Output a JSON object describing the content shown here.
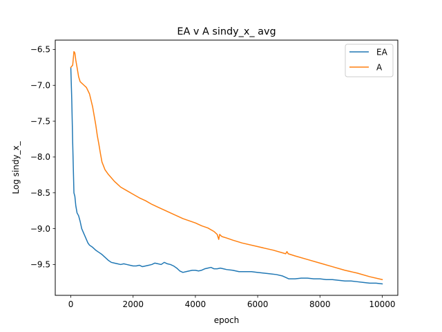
{
  "chart_data": {
    "type": "line",
    "title": "EA v A sindy_x_ avg",
    "xlabel": "epoch",
    "ylabel": "Log sindy_x_",
    "xlim": [
      -500,
      10500
    ],
    "ylim": [
      -9.93,
      -6.37
    ],
    "xticks": [
      0,
      2000,
      4000,
      6000,
      8000,
      10000
    ],
    "xtick_labels": [
      "0",
      "2000",
      "4000",
      "6000",
      "8000",
      "10000"
    ],
    "yticks": [
      -9.5,
      -9.0,
      -8.5,
      -8.0,
      -7.5,
      -7.0,
      -6.5
    ],
    "ytick_labels": [
      "−9.5",
      "−9.0",
      "−8.5",
      "−8.0",
      "−7.5",
      "−7.0",
      "−6.5"
    ],
    "grid": false,
    "legend_position": "upper right",
    "series": [
      {
        "name": "EA",
        "color": "#1f77b4",
        "x": [
          0,
          30,
          60,
          100,
          130,
          160,
          200,
          250,
          300,
          350,
          400,
          450,
          500,
          550,
          600,
          700,
          800,
          900,
          1000,
          1100,
          1200,
          1300,
          1400,
          1500,
          1600,
          1700,
          1800,
          1900,
          2000,
          2100,
          2200,
          2300,
          2400,
          2500,
          2600,
          2700,
          2800,
          2900,
          3000,
          3100,
          3200,
          3300,
          3400,
          3500,
          3600,
          3700,
          3800,
          3900,
          4000,
          4100,
          4200,
          4300,
          4400,
          4500,
          4600,
          4700,
          4800,
          4900,
          5000,
          5200,
          5400,
          5600,
          5800,
          6000,
          6200,
          6400,
          6600,
          6800,
          6900,
          7000,
          7200,
          7400,
          7600,
          7800,
          8000,
          8200,
          8400,
          8600,
          8800,
          9000,
          9200,
          9400,
          9600,
          9800,
          10000
        ],
        "y": [
          -6.76,
          -7.2,
          -7.8,
          -8.5,
          -8.55,
          -8.68,
          -8.78,
          -8.82,
          -8.9,
          -9.0,
          -9.05,
          -9.1,
          -9.15,
          -9.2,
          -9.23,
          -9.26,
          -9.3,
          -9.33,
          -9.36,
          -9.4,
          -9.44,
          -9.47,
          -9.48,
          -9.49,
          -9.5,
          -9.49,
          -9.5,
          -9.51,
          -9.52,
          -9.52,
          -9.51,
          -9.53,
          -9.52,
          -9.51,
          -9.5,
          -9.48,
          -9.49,
          -9.5,
          -9.47,
          -9.49,
          -9.5,
          -9.52,
          -9.55,
          -9.59,
          -9.61,
          -9.6,
          -9.59,
          -9.58,
          -9.58,
          -9.59,
          -9.58,
          -9.56,
          -9.55,
          -9.54,
          -9.56,
          -9.56,
          -9.55,
          -9.56,
          -9.57,
          -9.58,
          -9.6,
          -9.6,
          -9.6,
          -9.61,
          -9.62,
          -9.63,
          -9.64,
          -9.66,
          -9.68,
          -9.7,
          -9.7,
          -9.69,
          -9.69,
          -9.7,
          -9.7,
          -9.71,
          -9.71,
          -9.72,
          -9.73,
          -9.73,
          -9.74,
          -9.75,
          -9.76,
          -9.76,
          -9.77
        ]
      },
      {
        "name": "A",
        "color": "#ff7f0e",
        "x": [
          0,
          60,
          100,
          130,
          160,
          200,
          250,
          300,
          350,
          400,
          500,
          600,
          700,
          800,
          850,
          900,
          950,
          1000,
          1100,
          1200,
          1300,
          1400,
          1500,
          1600,
          1800,
          2000,
          2200,
          2400,
          2600,
          2800,
          3000,
          3200,
          3400,
          3600,
          3800,
          4000,
          4200,
          4400,
          4600,
          4700,
          4750,
          4780,
          4850,
          5000,
          5200,
          5500,
          6000,
          6500,
          6900,
          6940,
          6980,
          7200,
          7600,
          8000,
          8400,
          8800,
          9200,
          9600,
          10000
        ],
        "y": [
          -6.75,
          -6.72,
          -6.53,
          -6.55,
          -6.65,
          -6.75,
          -6.88,
          -6.95,
          -6.97,
          -6.99,
          -7.03,
          -7.12,
          -7.3,
          -7.55,
          -7.7,
          -7.82,
          -7.95,
          -8.07,
          -8.18,
          -8.24,
          -8.29,
          -8.34,
          -8.38,
          -8.42,
          -8.47,
          -8.52,
          -8.57,
          -8.61,
          -8.66,
          -8.7,
          -8.74,
          -8.78,
          -8.82,
          -8.86,
          -8.89,
          -8.92,
          -8.96,
          -8.99,
          -9.04,
          -9.08,
          -9.15,
          -9.08,
          -9.11,
          -9.13,
          -9.16,
          -9.2,
          -9.25,
          -9.3,
          -9.35,
          -9.32,
          -9.35,
          -9.38,
          -9.43,
          -9.48,
          -9.53,
          -9.58,
          -9.62,
          -9.67,
          -9.71
        ]
      }
    ]
  }
}
